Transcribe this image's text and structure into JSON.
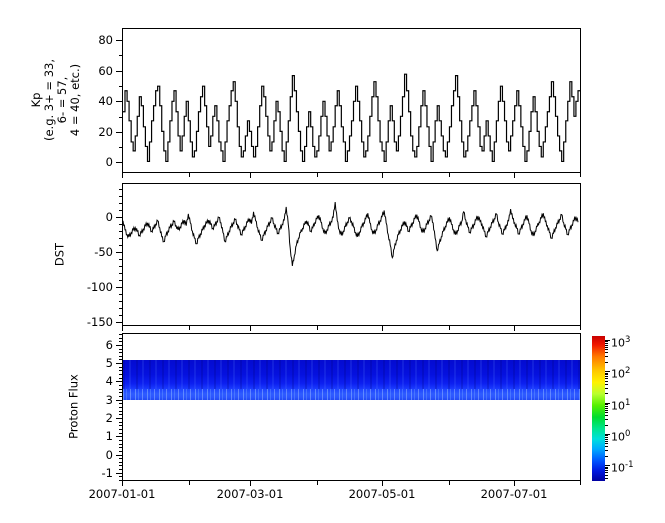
{
  "figure": {
    "background_color": "#ffffff",
    "line_color": "#000000",
    "band_upper_color": "#0511df",
    "band_lower_color": "#2f5cff"
  },
  "xaxis": {
    "tick_labels": [
      "2007-01-01",
      "2007-03-01",
      "2007-05-01",
      "2007-07-01"
    ],
    "major_days": [
      0,
      59,
      120,
      181
    ],
    "minor_days": [
      31,
      90,
      151,
      212
    ],
    "range_days": [
      0,
      212
    ]
  },
  "chart_data": [
    {
      "id": "kp",
      "type": "line",
      "render": "step",
      "ylabel": "Kp\n(e.g. 3+ = 33,\n6- = 57,\n4 = 40, etc.)",
      "ylim": [
        -7,
        88
      ],
      "yticks": [
        0,
        20,
        40,
        60,
        80
      ],
      "yticks_minor": [
        10,
        30,
        50,
        70
      ],
      "line_color": "#000000",
      "x_range": [
        "2007-01-01",
        "2007-08-01"
      ],
      "values": [
        33,
        47,
        40,
        27,
        13,
        7,
        17,
        30,
        43,
        37,
        23,
        10,
        0,
        13,
        27,
        37,
        47,
        50,
        37,
        20,
        7,
        0,
        13,
        27,
        40,
        47,
        33,
        17,
        7,
        17,
        30,
        40,
        27,
        13,
        3,
        7,
        20,
        33,
        43,
        50,
        37,
        23,
        10,
        17,
        30,
        37,
        27,
        13,
        7,
        0,
        13,
        27,
        37,
        47,
        53,
        40,
        23,
        10,
        3,
        7,
        17,
        27,
        20,
        10,
        3,
        10,
        23,
        37,
        50,
        43,
        30,
        17,
        7,
        13,
        27,
        40,
        33,
        20,
        7,
        0,
        13,
        27,
        43,
        57,
        47,
        33,
        20,
        7,
        0,
        10,
        23,
        33,
        23,
        10,
        3,
        7,
        17,
        30,
        40,
        30,
        17,
        7,
        13,
        23,
        37,
        47,
        37,
        23,
        13,
        0,
        7,
        17,
        27,
        40,
        50,
        40,
        27,
        13,
        3,
        7,
        17,
        30,
        43,
        53,
        43,
        27,
        13,
        7,
        0,
        13,
        27,
        37,
        27,
        13,
        7,
        17,
        30,
        43,
        58,
        47,
        33,
        17,
        7,
        3,
        10,
        23,
        37,
        47,
        37,
        23,
        10,
        0,
        13,
        27,
        37,
        27,
        17,
        7,
        3,
        13,
        23,
        37,
        47,
        57,
        43,
        27,
        13,
        3,
        7,
        17,
        27,
        37,
        47,
        37,
        23,
        10,
        7,
        17,
        27,
        17,
        7,
        0,
        13,
        27,
        40,
        50,
        40,
        27,
        13,
        7,
        17,
        27,
        37,
        47,
        37,
        23,
        10,
        0,
        7,
        20,
        33,
        43,
        33,
        20,
        10,
        3,
        13,
        23,
        33,
        43,
        53,
        43,
        30,
        17,
        7,
        0,
        13,
        27,
        40,
        53,
        43,
        30,
        40,
        47
      ]
    },
    {
      "id": "dst",
      "type": "line",
      "render": "noisy",
      "noise_amplitude": 2.5,
      "ylabel": "DST",
      "ylim": [
        -155,
        48
      ],
      "yticks": [
        0,
        -50,
        -100,
        -150
      ],
      "ytick_minor_step": 10,
      "line_color": "#000000",
      "x_range": [
        "2007-01-01",
        "2007-08-01"
      ],
      "values": [
        -5,
        -18,
        -25,
        -28,
        -22,
        -18,
        -15,
        -20,
        -26,
        -22,
        -17,
        -12,
        -8,
        -14,
        -20,
        -16,
        -10,
        -5,
        -15,
        -28,
        -35,
        -27,
        -20,
        -15,
        -10,
        -6,
        -12,
        -18,
        -14,
        -9,
        -4,
        -12,
        5,
        -8,
        -20,
        -30,
        -38,
        -30,
        -24,
        -18,
        -12,
        -8,
        -4,
        -10,
        -16,
        -12,
        -6,
        0,
        -8,
        -22,
        -35,
        -28,
        -20,
        -14,
        -8,
        -3,
        -10,
        -18,
        -25,
        -19,
        -13,
        -7,
        -2,
        -9,
        8,
        -5,
        -15,
        -25,
        -33,
        -26,
        -19,
        -13,
        -7,
        -1,
        -9,
        -17,
        -23,
        -17,
        -10,
        -4,
        15,
        -10,
        -45,
        -70,
        -55,
        -40,
        -30,
        -22,
        -16,
        -10,
        -5,
        -12,
        -20,
        -15,
        -8,
        -2,
        3,
        -7,
        -16,
        -24,
        -18,
        -12,
        -6,
        0,
        22,
        -5,
        -18,
        -26,
        -20,
        -13,
        -7,
        -1,
        -6,
        -14,
        -22,
        -28,
        -21,
        -14,
        -8,
        -2,
        6,
        -8,
        -18,
        -24,
        -18,
        -11,
        -5,
        1,
        10,
        -8,
        -25,
        -40,
        -58,
        -45,
        -33,
        -25,
        -18,
        -12,
        -6,
        -13,
        -20,
        -14,
        -8,
        -2,
        4,
        -6,
        -15,
        -22,
        -16,
        -10,
        -4,
        2,
        -8,
        -30,
        -48,
        -38,
        -28,
        -20,
        -13,
        -7,
        0,
        -10,
        -18,
        -25,
        -19,
        -12,
        -6,
        8,
        -4,
        -14,
        -22,
        -16,
        -10,
        -4,
        2,
        -6,
        -10,
        -20,
        -28,
        -21,
        -14,
        -8,
        -2,
        5,
        -7,
        -16,
        -24,
        -18,
        -11,
        -5,
        12,
        -2,
        -8,
        -16,
        -24,
        -17,
        -10,
        -4,
        3,
        -9,
        -19,
        -27,
        -20,
        -13,
        -7,
        -1,
        6,
        -6,
        -12,
        -22,
        -30,
        -23,
        -15,
        -9,
        -3,
        4,
        -8,
        -17,
        -25,
        -18,
        -11,
        -5,
        1,
        -7
      ]
    },
    {
      "id": "proton_flux",
      "type": "heatmap",
      "ylabel": "Proton Flux",
      "ylim": [
        -1.45,
        6.65
      ],
      "yticks": [
        -1,
        0,
        1,
        2,
        3,
        4,
        5,
        6
      ],
      "ytick_minor_step": 0.2,
      "band": {
        "value_top": 5.15,
        "value_bottom": 3.0,
        "upper_color": "#0511df",
        "lower_color": "#2f5cff"
      },
      "colorbar": {
        "scale": "log",
        "tick_exponents": [
          3,
          2,
          1,
          0,
          -1
        ],
        "gradient_stops": [
          [
            0,
            "#c80000"
          ],
          [
            6,
            "#f01800"
          ],
          [
            14,
            "#ff7700"
          ],
          [
            24,
            "#ffc800"
          ],
          [
            32,
            "#fff200"
          ],
          [
            40,
            "#b8ff30"
          ],
          [
            48,
            "#55f000"
          ],
          [
            56,
            "#00dd30"
          ],
          [
            64,
            "#00e690"
          ],
          [
            71,
            "#00e0dd"
          ],
          [
            78,
            "#00aaff"
          ],
          [
            86,
            "#0055ff"
          ],
          [
            93,
            "#0018e0"
          ],
          [
            100,
            "#0000a0"
          ]
        ]
      }
    }
  ]
}
